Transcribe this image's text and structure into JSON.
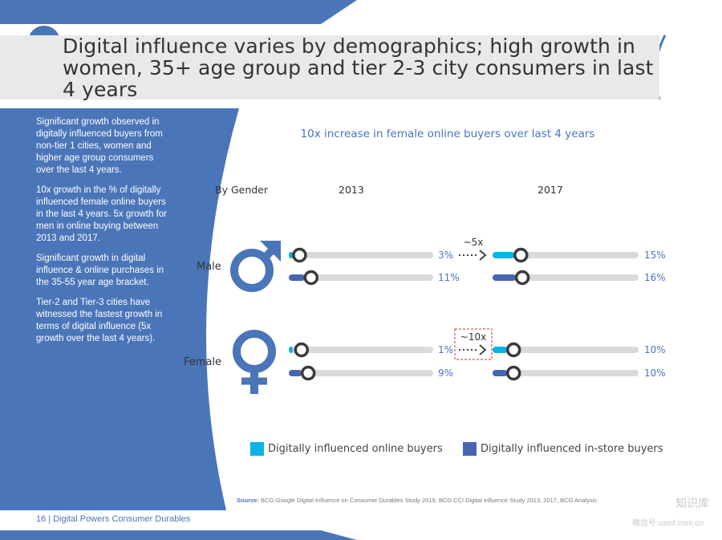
{
  "page": {
    "title": "Digital influence varies by demographics; high growth in women, 35+ age group and tier 2-3 city consumers in last 4 years",
    "sidebar": [
      "Significant growth observed in digitally influenced buyers from non-tier 1 cities, women and higher age group consumers over the last 4 years.",
      "10x growth in the % of digitally influenced female online buyers in the last 4 years. 5x growth for men in online buying between 2013 and 2017.",
      "Significant growth in digital influence & online purchases in the 35-55 year age bracket.",
      "Tier-2 and Tier-3 cities have witnessed the fastest growth in terms of digital influence (5x growth over the last 4 years)."
    ],
    "source_label": "Source:",
    "source_text": "BCG-Google Digital Influence on Consumer Durables Study 2019, BCG CCI Digital influence Study 2013, 2017, BCG Analysis",
    "page_number": "16",
    "footer_text": "Digital Powers Consumer Durables",
    "watermark_1": "知识库",
    "watermark_2": "微信号:useit.com.cn",
    "colors": {
      "online": "#0ab3e8",
      "instore": "#4666b2",
      "track": "#d8dadc",
      "blue": "#4a75b8",
      "knob": "#3a3a3a"
    }
  },
  "chart_data": {
    "type": "bar",
    "title": "10x increase in female online buyers over last 4 years",
    "row_header": "By Gender",
    "periods": [
      "2013",
      "2017"
    ],
    "categories": [
      "Male",
      "Female"
    ],
    "series": [
      {
        "name": "Digitally influenced online buyers",
        "color": "#0ab3e8",
        "values": {
          "2013": [
            3,
            1
          ],
          "2017": [
            15,
            10
          ]
        },
        "labels": {
          "2013": [
            "3%",
            "1%"
          ],
          "2017": [
            "15%",
            "10%"
          ]
        }
      },
      {
        "name": "Digitally influenced in-store buyers",
        "color": "#4666b2",
        "values": {
          "2013": [
            11,
            9
          ],
          "2017": [
            16,
            10
          ]
        },
        "labels": {
          "2013": [
            "11%",
            "9%"
          ],
          "2017": [
            "16%",
            "10%"
          ]
        }
      }
    ],
    "growth_annotations": [
      {
        "category": "Male",
        "label": "~5x",
        "boxed": false
      },
      {
        "category": "Female",
        "label": "~10x",
        "boxed": true
      }
    ],
    "legend": "bottom"
  }
}
